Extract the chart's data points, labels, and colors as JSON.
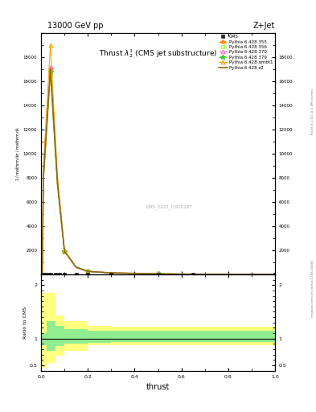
{
  "title": "13000 GeV pp",
  "title_right": "Z+Jet",
  "plot_title": "Thrust $\\lambda\\_2^1$ (CMS jet substructure)",
  "xlabel": "thrust",
  "watermark": "CMS_2021_I1920187",
  "rivet_text": "Rivet 3.1.10, ≥ 2.9M events",
  "arxiv_text": "mcplots.cern.ch [arXiv:1306.3436]",
  "ylabel_lines": [
    "mathrm d",
    "mathrm d",
    "mathrm d",
    "mathrm d",
    "mathrm d"
  ],
  "main_x": [
    0.005,
    0.01,
    0.04,
    0.07,
    0.1,
    0.15,
    0.2,
    0.3,
    0.5,
    0.65,
    1.0
  ],
  "p355_y": [
    100,
    8000,
    17000,
    7500,
    1900,
    580,
    240,
    115,
    38,
    9,
    2
  ],
  "p356_y": [
    100,
    7700,
    16500,
    7200,
    1850,
    560,
    232,
    112,
    37,
    9,
    2
  ],
  "p370_y": [
    100,
    8100,
    17200,
    7600,
    1920,
    585,
    242,
    116,
    39,
    9.5,
    2
  ],
  "p379_y": [
    100,
    7900,
    16800,
    7400,
    1880,
    572,
    238,
    114,
    38,
    9,
    2
  ],
  "pambt1_y": [
    120,
    9000,
    19000,
    8200,
    2000,
    610,
    255,
    120,
    41,
    10,
    2.5
  ],
  "pz2_y": [
    100,
    8050,
    17000,
    7550,
    1910,
    582,
    241,
    115,
    38,
    9,
    2
  ],
  "cms_x": [
    0.005,
    0.01,
    0.02,
    0.03,
    0.04,
    0.06,
    0.08,
    0.1,
    0.15,
    0.2,
    0.3,
    0.5,
    0.65,
    1.0
  ],
  "ratio_edges": [
    0.0,
    0.025,
    0.06,
    0.1,
    0.2,
    0.3,
    1.0
  ],
  "yellow_lo": [
    0.45,
    0.55,
    0.68,
    0.77,
    0.87,
    0.88
  ],
  "yellow_hi": [
    1.85,
    1.85,
    1.43,
    1.33,
    1.24,
    1.22
  ],
  "green_lo": [
    0.88,
    0.77,
    0.86,
    0.9,
    0.92,
    0.93
  ],
  "green_hi": [
    1.1,
    1.33,
    1.23,
    1.18,
    1.15,
    1.15
  ],
  "cms_color": "#222222",
  "p355_color": "#FF8C00",
  "p356_color": "#ADFF2F",
  "p370_color": "#FF69B4",
  "p379_color": "#32CD32",
  "pambt1_color": "#FFA500",
  "pz2_color": "#8B6914",
  "yellow_color": "#FFFF80",
  "green_color": "#90EE90",
  "ylim_main": [
    0,
    20000
  ],
  "ylim_ratio": [
    0.4,
    2.2
  ],
  "xlim": [
    0.0,
    1.0
  ],
  "yticks_main": [
    0,
    2000,
    4000,
    6000,
    8000,
    10000,
    12000,
    14000,
    16000,
    18000,
    20000
  ],
  "ytick_labels_main": [
    "",
    "2000",
    "4000",
    "6000",
    "8000",
    "10000",
    "12000",
    "14000",
    "16000",
    "18000",
    ""
  ],
  "yticks_ratio": [
    0.5,
    1.0,
    2.0
  ]
}
